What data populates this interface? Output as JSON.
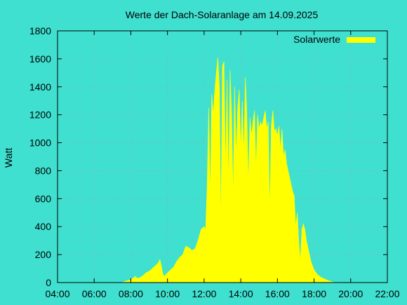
{
  "colors": {
    "background": "#40e0d0",
    "fill": "#ffff00",
    "grid": "#a0a0a0",
    "axis": "#000000"
  },
  "chart_data": {
    "type": "area",
    "title": "Werte der Dach-Solaranlage am 14.09.2025",
    "xlabel": "",
    "ylabel": "Watt",
    "xlim": [
      "04:00",
      "22:00"
    ],
    "ylim": [
      0,
      1800
    ],
    "x_ticks": [
      "04:00",
      "06:00",
      "08:00",
      "10:00",
      "12:00",
      "14:00",
      "16:00",
      "18:00",
      "20:00",
      "22:00"
    ],
    "y_ticks": [
      0,
      200,
      400,
      600,
      800,
      1000,
      1200,
      1400,
      1600,
      1800
    ],
    "grid": true,
    "legend_position": "top-right",
    "series": [
      {
        "name": "Solarwerte",
        "color": "#ffff00",
        "points": [
          [
            "07:30",
            0
          ],
          [
            "07:40",
            8
          ],
          [
            "07:50",
            15
          ],
          [
            "08:00",
            20
          ],
          [
            "08:10",
            35
          ],
          [
            "08:15",
            45
          ],
          [
            "08:20",
            30
          ],
          [
            "08:30",
            35
          ],
          [
            "08:40",
            50
          ],
          [
            "08:50",
            70
          ],
          [
            "09:00",
            80
          ],
          [
            "09:10",
            100
          ],
          [
            "09:20",
            120
          ],
          [
            "09:30",
            140
          ],
          [
            "09:35",
            165
          ],
          [
            "09:40",
            120
          ],
          [
            "09:45",
            60
          ],
          [
            "09:50",
            45
          ],
          [
            "10:00",
            70
          ],
          [
            "10:10",
            90
          ],
          [
            "10:20",
            110
          ],
          [
            "10:30",
            150
          ],
          [
            "10:40",
            180
          ],
          [
            "10:50",
            200
          ],
          [
            "11:00",
            260
          ],
          [
            "11:10",
            250
          ],
          [
            "11:20",
            230
          ],
          [
            "11:30",
            240
          ],
          [
            "11:40",
            300
          ],
          [
            "11:50",
            380
          ],
          [
            "12:00",
            400
          ],
          [
            "12:05",
            380
          ],
          [
            "12:10",
            700
          ],
          [
            "12:15",
            1250
          ],
          [
            "12:20",
            600
          ],
          [
            "12:25",
            1350
          ],
          [
            "12:30",
            1200
          ],
          [
            "12:35",
            1380
          ],
          [
            "12:40",
            1500
          ],
          [
            "12:45",
            1610
          ],
          [
            "12:50",
            1400
          ],
          [
            "12:55",
            400
          ],
          [
            "13:00",
            1550
          ],
          [
            "13:05",
            1580
          ],
          [
            "13:10",
            800
          ],
          [
            "13:15",
            1450
          ],
          [
            "13:20",
            700
          ],
          [
            "13:25",
            1520
          ],
          [
            "13:30",
            1200
          ],
          [
            "13:35",
            600
          ],
          [
            "13:40",
            1400
          ],
          [
            "13:45",
            900
          ],
          [
            "13:50",
            1250
          ],
          [
            "13:55",
            1380
          ],
          [
            "14:00",
            950
          ],
          [
            "14:05",
            1300
          ],
          [
            "14:10",
            900
          ],
          [
            "14:15",
            1470
          ],
          [
            "14:20",
            1200
          ],
          [
            "14:25",
            700
          ],
          [
            "14:30",
            1180
          ],
          [
            "14:35",
            1050
          ],
          [
            "14:40",
            1150
          ],
          [
            "14:45",
            1230
          ],
          [
            "14:50",
            800
          ],
          [
            "14:55",
            1200
          ],
          [
            "15:00",
            1100
          ],
          [
            "15:05",
            1150
          ],
          [
            "15:10",
            1120
          ],
          [
            "15:15",
            1180
          ],
          [
            "15:20",
            1230
          ],
          [
            "15:25",
            1100
          ],
          [
            "15:30",
            1150
          ],
          [
            "15:35",
            500
          ],
          [
            "15:40",
            1120
          ],
          [
            "15:45",
            1230
          ],
          [
            "15:50",
            1080
          ],
          [
            "15:55",
            1100
          ],
          [
            "16:00",
            1050
          ],
          [
            "16:05",
            1120
          ],
          [
            "16:10",
            950
          ],
          [
            "16:15",
            1100
          ],
          [
            "16:20",
            900
          ],
          [
            "16:25",
            950
          ],
          [
            "16:30",
            850
          ],
          [
            "16:35",
            800
          ],
          [
            "16:40",
            750
          ],
          [
            "16:45",
            700
          ],
          [
            "16:50",
            650
          ],
          [
            "16:55",
            620
          ],
          [
            "17:00",
            400
          ],
          [
            "17:05",
            500
          ],
          [
            "17:10",
            300
          ],
          [
            "17:15",
            150
          ],
          [
            "17:20",
            380
          ],
          [
            "17:25",
            420
          ],
          [
            "17:30",
            380
          ],
          [
            "17:35",
            300
          ],
          [
            "17:40",
            250
          ],
          [
            "17:45",
            200
          ],
          [
            "17:50",
            150
          ],
          [
            "17:55",
            120
          ],
          [
            "18:00",
            90
          ],
          [
            "18:10",
            60
          ],
          [
            "18:20",
            40
          ],
          [
            "18:30",
            30
          ],
          [
            "18:40",
            20
          ],
          [
            "18:50",
            12
          ],
          [
            "19:00",
            5
          ],
          [
            "19:10",
            0
          ]
        ]
      }
    ]
  }
}
